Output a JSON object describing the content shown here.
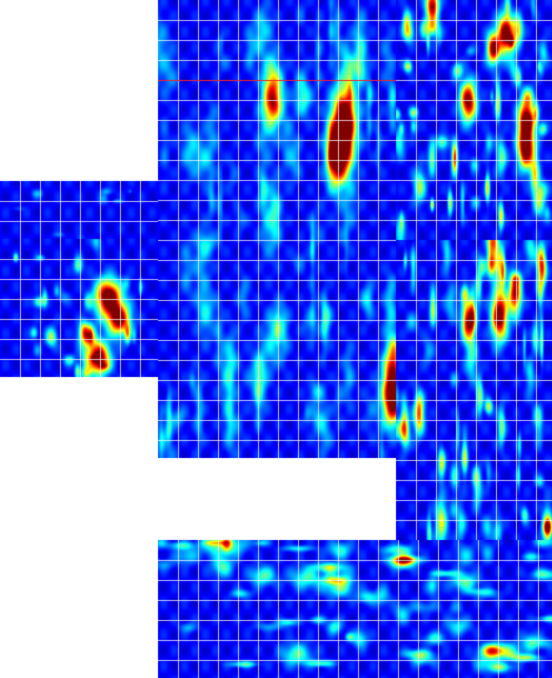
{
  "chart_data": {
    "type": "heatmap",
    "colormap": "jet",
    "grid": true,
    "grid_color": "#ffffff",
    "background_color": "#ffffff",
    "panels": [
      {
        "name": "strip-left-top",
        "intensity": 0.25,
        "rows": 3,
        "cols": 1
      },
      {
        "name": "strip-left-mid",
        "intensity": 0.55,
        "rows": 3,
        "cols": 1
      },
      {
        "name": "panel-main-dark",
        "intensity": 0.3
      },
      {
        "name": "panel-right-top",
        "intensity": 0.7
      },
      {
        "name": "panel-right-mid",
        "intensity": 0.65
      },
      {
        "name": "panel-bottom",
        "intensity": 0.5
      }
    ],
    "hotspots": [
      {
        "panel": "strip-left-mid",
        "cx": 0.68,
        "cy": 0.42,
        "r": 0.08,
        "v": 1.0
      },
      {
        "panel": "strip-left-mid",
        "cx": 0.75,
        "cy": 0.58,
        "r": 0.07,
        "v": 0.9
      },
      {
        "panel": "strip-left-mid",
        "cx": 0.62,
        "cy": 0.86,
        "r": 0.07,
        "v": 1.0
      },
      {
        "panel": "strip-left-mid",
        "cx": 0.55,
        "cy": 0.7,
        "r": 0.05,
        "v": 0.7
      },
      {
        "panel": "panel-main-dark",
        "cx": 0.78,
        "cy": 0.27,
        "r": 0.05,
        "v": 1.0
      },
      {
        "panel": "panel-main-dark",
        "cx": 0.75,
        "cy": 0.34,
        "r": 0.04,
        "v": 0.95
      },
      {
        "panel": "panel-main-dark",
        "cx": 0.48,
        "cy": 0.21,
        "r": 0.04,
        "v": 0.8
      },
      {
        "panel": "panel-main-dark",
        "cx": 0.98,
        "cy": 0.86,
        "r": 0.04,
        "v": 0.9
      },
      {
        "panel": "panel-right-top",
        "cx": 0.7,
        "cy": 0.14,
        "r": 0.05,
        "v": 1.0
      },
      {
        "panel": "panel-right-top",
        "cx": 0.62,
        "cy": 0.2,
        "r": 0.04,
        "v": 0.9
      },
      {
        "panel": "panel-right-top",
        "cx": 0.46,
        "cy": 0.42,
        "r": 0.05,
        "v": 0.95
      },
      {
        "panel": "panel-right-top",
        "cx": 0.83,
        "cy": 0.5,
        "r": 0.05,
        "v": 0.95
      },
      {
        "panel": "panel-right-top",
        "cx": 0.83,
        "cy": 0.62,
        "r": 0.05,
        "v": 1.0
      },
      {
        "panel": "panel-right-top",
        "cx": 0.23,
        "cy": 0.02,
        "r": 0.04,
        "v": 0.9
      },
      {
        "panel": "panel-right-mid",
        "cx": 0.66,
        "cy": 0.25,
        "r": 0.05,
        "v": 1.0
      },
      {
        "panel": "panel-right-mid",
        "cx": 0.46,
        "cy": 0.27,
        "r": 0.04,
        "v": 0.9
      },
      {
        "panel": "panel-right-mid",
        "cx": 0.76,
        "cy": 0.18,
        "r": 0.04,
        "v": 0.85
      },
      {
        "panel": "panel-bottom",
        "cx": 0.62,
        "cy": 0.15,
        "r": 0.03,
        "v": 0.7
      },
      {
        "panel": "panel-bottom",
        "cx": 0.85,
        "cy": 0.8,
        "r": 0.03,
        "v": 0.75
      }
    ]
  }
}
